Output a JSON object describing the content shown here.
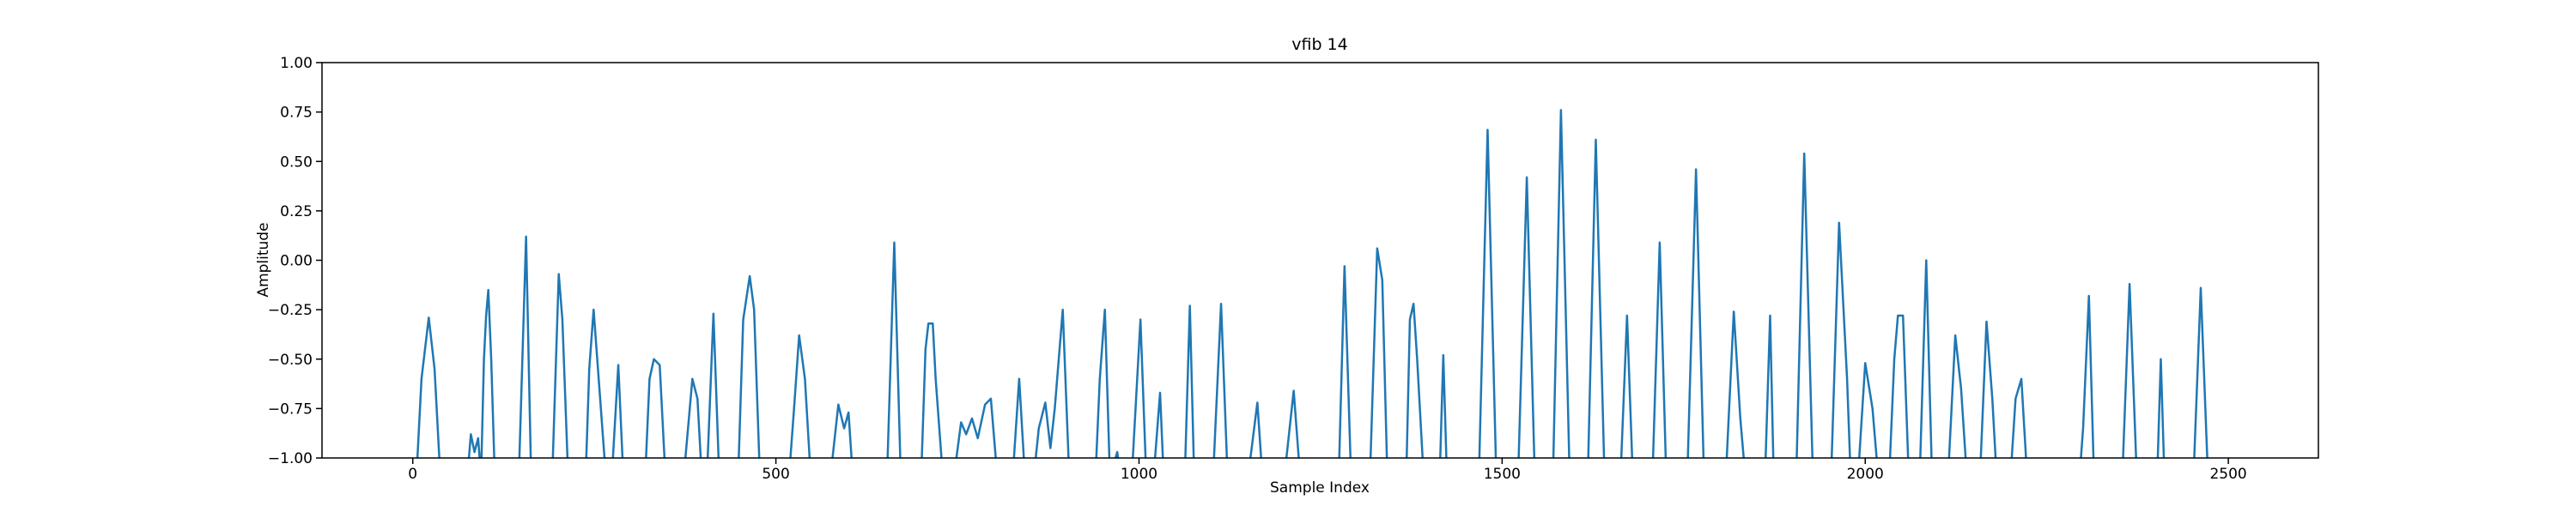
{
  "chart_data": {
    "type": "line",
    "title": "vfib 14",
    "x_label": "Sample Index",
    "y_label": "Amplitude",
    "color": "#1f77b4",
    "xlim": [
      -125,
      2624
    ],
    "ylim": [
      -1,
      1
    ],
    "xticks": [
      0,
      500,
      1000,
      1500,
      2000,
      2500
    ],
    "yticks": [
      {
        "value": -1,
        "label": "−1.00"
      },
      {
        "value": -0.75,
        "label": "−0.75"
      },
      {
        "value": -0.5,
        "label": "−0.50"
      },
      {
        "value": -0.25,
        "label": "−0.25"
      },
      {
        "value": 0,
        "label": "0.00"
      },
      {
        "value": 0.25,
        "label": "0.25"
      },
      {
        "value": 0.5,
        "label": "0.50"
      },
      {
        "value": 0.75,
        "label": "0.75"
      },
      {
        "value": 1,
        "label": "1.00"
      }
    ],
    "x": [
      0,
      5,
      12,
      22,
      30,
      38,
      75,
      80,
      85,
      90,
      94,
      98,
      101,
      104,
      108,
      113,
      146,
      156,
      163,
      192,
      201,
      206,
      214,
      238,
      243,
      249,
      256,
      262,
      266,
      274,
      283,
      290,
      320,
      326,
      332,
      340,
      348,
      373,
      385,
      392,
      398,
      405,
      414,
      422,
      448,
      455,
      464,
      470,
      478,
      518,
      525,
      532,
      540,
      548,
      575,
      586,
      594,
      600,
      606,
      653,
      663,
      672,
      700,
      706,
      710,
      716,
      720,
      730,
      745,
      755,
      762,
      770,
      778,
      788,
      796,
      805,
      826,
      835,
      843,
      855,
      862,
      871,
      878,
      884,
      895,
      904,
      940,
      946,
      953,
      960,
      970,
      975,
      990,
      1002,
      1010,
      1020,
      1029,
      1034,
      1063,
      1070,
      1076,
      1102,
      1113,
      1122,
      1150,
      1163,
      1170,
      1200,
      1213,
      1222,
      1275,
      1283,
      1292,
      1318,
      1328,
      1335,
      1342,
      1368,
      1373,
      1378,
      1383,
      1392,
      1414,
      1419,
      1424,
      1468,
      1480,
      1492,
      1522,
      1534,
      1545,
      1570,
      1581,
      1593,
      1618,
      1629,
      1641,
      1663,
      1672,
      1680,
      1707,
      1717,
      1726,
      1755,
      1767,
      1778,
      1808,
      1819,
      1828,
      1835,
      1862,
      1869,
      1874,
      1905,
      1916,
      1928,
      1953,
      1964,
      1975,
      1980,
      1990,
      2000,
      2010,
      2018,
      2033,
      2040,
      2045,
      2052,
      2060,
      2075,
      2084,
      2092,
      2114,
      2124,
      2132,
      2140,
      2158,
      2167,
      2175,
      2181,
      2200,
      2207,
      2215,
      2223,
      2295,
      2300,
      2308,
      2315,
      2354,
      2364,
      2374,
      2402,
      2407,
      2412,
      2452,
      2462,
      2472,
      2499
    ],
    "values": [
      -1.1,
      -1.1,
      -0.6,
      -0.29,
      -0.55,
      -1.1,
      -1.1,
      -0.88,
      -0.97,
      -0.9,
      -1.1,
      -0.5,
      -0.28,
      -0.15,
      -0.5,
      -1.1,
      -1.1,
      0.12,
      -1.1,
      -1.1,
      -0.07,
      -0.3,
      -1.1,
      -1.1,
      -0.55,
      -0.25,
      -0.6,
      -0.9,
      -1.1,
      -1.1,
      -0.53,
      -1.1,
      -1.1,
      -0.6,
      -0.5,
      -0.53,
      -1.1,
      -1.1,
      -0.6,
      -0.7,
      -1.1,
      -1.1,
      -0.27,
      -1.1,
      -1.1,
      -0.3,
      -0.08,
      -0.25,
      -1.1,
      -1.1,
      -0.75,
      -0.38,
      -0.6,
      -1.1,
      -1.1,
      -0.73,
      -0.85,
      -0.77,
      -1.1,
      -1.1,
      0.09,
      -1.1,
      -1.1,
      -0.45,
      -0.32,
      -0.32,
      -0.6,
      -1.1,
      -1.1,
      -0.82,
      -0.88,
      -0.8,
      -0.9,
      -0.73,
      -0.7,
      -1.1,
      -1.1,
      -0.6,
      -1.1,
      -1.1,
      -0.85,
      -0.72,
      -0.95,
      -0.75,
      -0.25,
      -1.1,
      -1.1,
      -0.6,
      -0.25,
      -1.1,
      -0.97,
      -1.1,
      -1.1,
      -0.3,
      -1.1,
      -1.1,
      -0.67,
      -1.1,
      -1.1,
      -0.23,
      -1.1,
      -1.1,
      -0.22,
      -1.1,
      -1.1,
      -0.72,
      -1.1,
      -1.1,
      -0.66,
      -1.1,
      -1.1,
      -0.03,
      -1.1,
      -1.1,
      0.06,
      -0.1,
      -1.1,
      -1.1,
      -0.3,
      -0.22,
      -0.5,
      -1.1,
      -1.1,
      -0.48,
      -1.1,
      -1.1,
      0.66,
      -1.1,
      -1.1,
      0.42,
      -1.1,
      -1.1,
      0.76,
      -1.1,
      -1.1,
      0.61,
      -1.1,
      -1.1,
      -0.28,
      -1.1,
      -1.1,
      0.09,
      -1.1,
      -1.1,
      0.46,
      -1.1,
      -1.1,
      -0.26,
      -0.8,
      -1.1,
      -1.1,
      -0.28,
      -1.1,
      -1.1,
      0.54,
      -1.1,
      -1.1,
      0.19,
      -0.6,
      -1.1,
      -1.1,
      -0.52,
      -0.75,
      -1.1,
      -1.1,
      -0.5,
      -0.28,
      -0.28,
      -1.1,
      -1.1,
      0.0,
      -1.1,
      -1.1,
      -0.38,
      -0.65,
      -1.1,
      -1.1,
      -0.31,
      -0.7,
      -1.1,
      -1.1,
      -0.7,
      -0.6,
      -1.1,
      -1.1,
      -0.85,
      -0.18,
      -1.1,
      -1.1,
      -0.12,
      -1.1,
      -1.1,
      -0.5,
      -1.1,
      -1.1,
      -0.14,
      -1.1,
      -1.1
    ]
  }
}
